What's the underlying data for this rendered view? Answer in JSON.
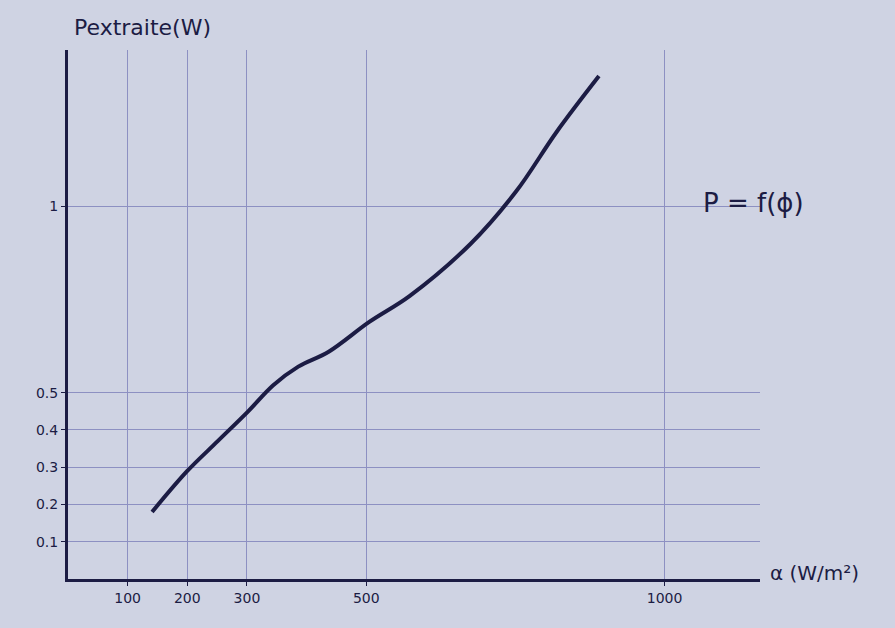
{
  "chart_data": {
    "type": "line",
    "y_label": "Pextraite(W)",
    "x_label": "α (W/m²)",
    "annotations": [
      "P = f(ϕ)"
    ],
    "x": [
      141,
      200,
      251,
      302,
      344,
      386,
      437,
      505,
      573,
      675,
      751,
      819,
      890
    ],
    "values": [
      0.18,
      0.29,
      0.37,
      0.45,
      0.52,
      0.57,
      0.61,
      0.69,
      0.76,
      0.9,
      1.04,
      1.2,
      1.35
    ],
    "color": "#1c1c44",
    "xlim": [
      0,
      1160
    ],
    "xticks": [
      100,
      200,
      300,
      500,
      1000
    ],
    "ylim": [
      0,
      1.42
    ],
    "yticks": [
      0.1,
      0.2,
      0.3,
      0.4,
      0.5,
      1
    ],
    "grid": true
  }
}
